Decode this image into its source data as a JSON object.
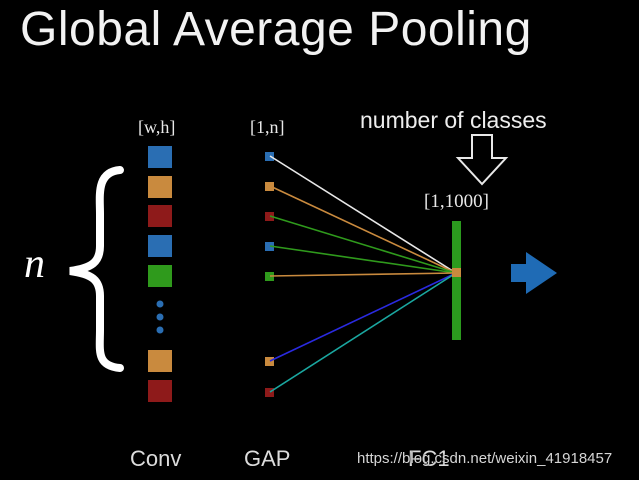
{
  "title": "Global Average Pooling",
  "labels": {
    "conv_dim": "[w,h]",
    "gap_dim": "[1,n]",
    "fc_dim": "[1,1000]",
    "number_of_classes": "number of classes",
    "n": "n",
    "conv": "Conv",
    "gap": "GAP",
    "fc": "FC1"
  },
  "watermark": "https://blog.csdn.net/weixin_41918457",
  "icons": {
    "brace": "left-curly-brace-icon",
    "down_arrow": "hollow-down-arrow-icon",
    "right_arrow": "blue-right-arrow-icon"
  },
  "colors": {
    "blue": "#2a6eb3",
    "orange": "#c98a3e",
    "red": "#8e1a1a",
    "green": "#2f9a1c",
    "fc_bar": "#2b9a1e",
    "arrow_blue": "#1f6bb5",
    "ellipsis_dots": "#2a6eb3"
  },
  "feature_maps": [
    {
      "color": "blue",
      "line": "#e8e8e8"
    },
    {
      "color": "orange",
      "line": "#c98a3e"
    },
    {
      "color": "red",
      "line": "#2f9a1c"
    },
    {
      "color": "blue",
      "line": "#2f9a1c"
    },
    {
      "color": "green",
      "line": "#c98a3e"
    },
    {
      "color": "orange",
      "line": "#2a2ae0"
    },
    {
      "color": "red",
      "line": "#1aa7a0"
    }
  ]
}
